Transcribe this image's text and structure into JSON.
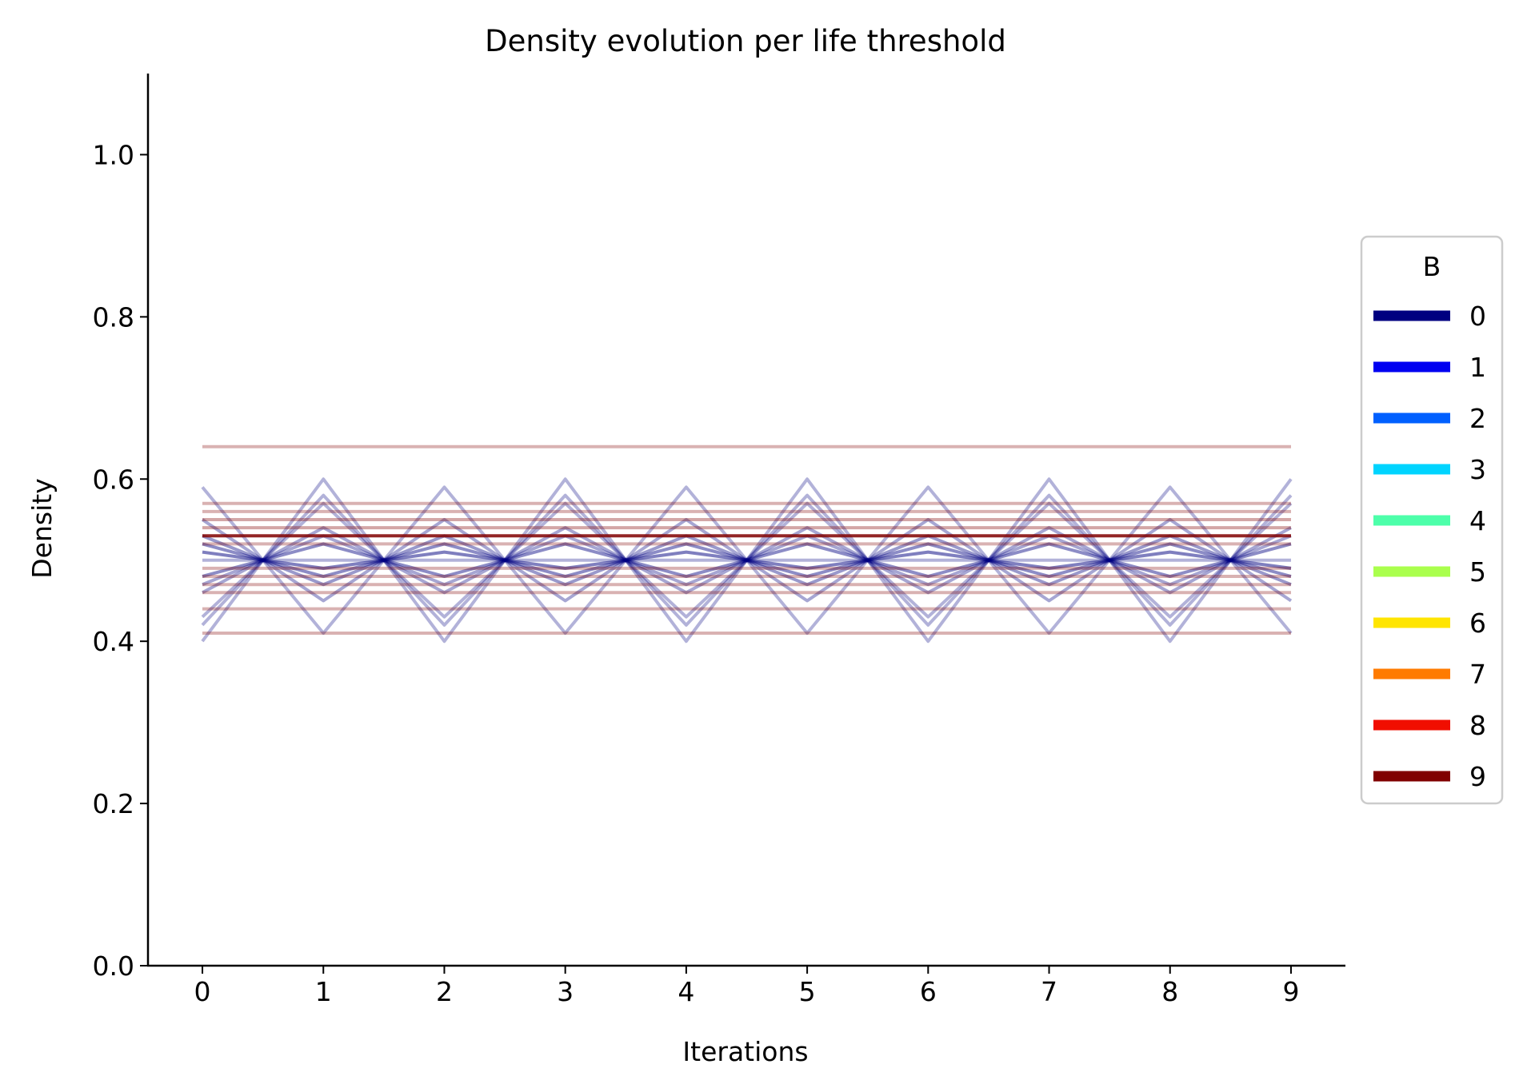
{
  "chart_data": {
    "type": "line",
    "title": "Density evolution per life threshold",
    "xlabel": "Iterations",
    "ylabel": "Density",
    "x": [
      0,
      1,
      2,
      3,
      4,
      5,
      6,
      7,
      8,
      9
    ],
    "xlim": [
      -0.45,
      9.45
    ],
    "ylim": [
      0.0,
      1.1
    ],
    "xticks": [
      "0",
      "1",
      "2",
      "3",
      "4",
      "5",
      "6",
      "7",
      "8",
      "9"
    ],
    "yticks": [
      "0.0",
      "0.2",
      "0.4",
      "0.6",
      "0.8",
      "1.0"
    ],
    "grid": false,
    "legend": {
      "title": "B",
      "placement": "right",
      "entries": [
        {
          "label": "0",
          "color": "#000080"
        },
        {
          "label": "1",
          "color": "#0000f1"
        },
        {
          "label": "2",
          "color": "#0060ff"
        },
        {
          "label": "3",
          "color": "#00d4ff"
        },
        {
          "label": "4",
          "color": "#4dffaa"
        },
        {
          "label": "5",
          "color": "#aaff4d"
        },
        {
          "label": "6",
          "color": "#ffe500"
        },
        {
          "label": "7",
          "color": "#ff7b00"
        },
        {
          "label": "8",
          "color": "#f10e00"
        },
        {
          "label": "9",
          "color": "#800000"
        }
      ]
    },
    "series": [
      {
        "color": "#000080",
        "opacity": 0.3,
        "values": [
          0.4,
          0.6,
          0.4,
          0.6,
          0.4,
          0.6,
          0.4,
          0.6,
          0.4,
          0.6
        ]
      },
      {
        "color": "#000080",
        "opacity": 0.3,
        "values": [
          0.59,
          0.41,
          0.59,
          0.41,
          0.59,
          0.41,
          0.59,
          0.41,
          0.59,
          0.41
        ]
      },
      {
        "color": "#000080",
        "opacity": 0.3,
        "values": [
          0.42,
          0.58,
          0.42,
          0.58,
          0.42,
          0.58,
          0.42,
          0.58,
          0.42,
          0.58
        ]
      },
      {
        "color": "#000080",
        "opacity": 0.3,
        "values": [
          0.43,
          0.57,
          0.43,
          0.57,
          0.43,
          0.57,
          0.43,
          0.57,
          0.43,
          0.57
        ]
      },
      {
        "color": "#000080",
        "opacity": 0.35,
        "values": [
          0.55,
          0.45,
          0.55,
          0.45,
          0.55,
          0.45,
          0.55,
          0.45,
          0.55,
          0.45
        ]
      },
      {
        "color": "#000080",
        "opacity": 0.35,
        "values": [
          0.46,
          0.54,
          0.46,
          0.54,
          0.46,
          0.54,
          0.46,
          0.54,
          0.46,
          0.54
        ]
      },
      {
        "color": "#000080",
        "opacity": 0.4,
        "values": [
          0.53,
          0.47,
          0.53,
          0.47,
          0.53,
          0.47,
          0.53,
          0.47,
          0.53,
          0.47
        ]
      },
      {
        "color": "#000080",
        "opacity": 0.45,
        "values": [
          0.48,
          0.52,
          0.48,
          0.52,
          0.48,
          0.52,
          0.48,
          0.52,
          0.48,
          0.52
        ]
      },
      {
        "color": "#000080",
        "opacity": 0.5,
        "values": [
          0.51,
          0.49,
          0.51,
          0.49,
          0.51,
          0.49,
          0.51,
          0.49,
          0.51,
          0.49
        ]
      },
      {
        "color": "#000080",
        "opacity": 0.45,
        "values": [
          0.52,
          0.48,
          0.52,
          0.48,
          0.52,
          0.48,
          0.52,
          0.48,
          0.52,
          0.48
        ]
      },
      {
        "color": "#000080",
        "opacity": 0.35,
        "values": [
          0.47,
          0.53,
          0.47,
          0.53,
          0.47,
          0.53,
          0.47,
          0.53,
          0.47,
          0.53
        ]
      },
      {
        "color": "#000080",
        "opacity": 0.3,
        "values": [
          0.5,
          0.5,
          0.5,
          0.5,
          0.5,
          0.5,
          0.5,
          0.5,
          0.5,
          0.5
        ]
      },
      {
        "color": "#800000",
        "opacity": 0.3,
        "values": [
          0.64,
          0.64,
          0.64,
          0.64,
          0.64,
          0.64,
          0.64,
          0.64,
          0.64,
          0.64
        ]
      },
      {
        "color": "#800000",
        "opacity": 0.3,
        "values": [
          0.57,
          0.57,
          0.57,
          0.57,
          0.57,
          0.57,
          0.57,
          0.57,
          0.57,
          0.57
        ]
      },
      {
        "color": "#800000",
        "opacity": 0.3,
        "values": [
          0.56,
          0.56,
          0.56,
          0.56,
          0.56,
          0.56,
          0.56,
          0.56,
          0.56,
          0.56
        ]
      },
      {
        "color": "#800000",
        "opacity": 0.35,
        "values": [
          0.55,
          0.55,
          0.55,
          0.55,
          0.55,
          0.55,
          0.55,
          0.55,
          0.55,
          0.55
        ]
      },
      {
        "color": "#800000",
        "opacity": 0.35,
        "values": [
          0.54,
          0.54,
          0.54,
          0.54,
          0.54,
          0.54,
          0.54,
          0.54,
          0.54,
          0.54
        ]
      },
      {
        "color": "#800000",
        "opacity": 0.85,
        "values": [
          0.53,
          0.53,
          0.53,
          0.53,
          0.53,
          0.53,
          0.53,
          0.53,
          0.53,
          0.53
        ]
      },
      {
        "color": "#800000",
        "opacity": 0.3,
        "values": [
          0.52,
          0.52,
          0.52,
          0.52,
          0.52,
          0.52,
          0.52,
          0.52,
          0.52,
          0.52
        ]
      },
      {
        "color": "#800000",
        "opacity": 0.3,
        "values": [
          0.49,
          0.49,
          0.49,
          0.49,
          0.49,
          0.49,
          0.49,
          0.49,
          0.49,
          0.49
        ]
      },
      {
        "color": "#800000",
        "opacity": 0.3,
        "values": [
          0.48,
          0.48,
          0.48,
          0.48,
          0.48,
          0.48,
          0.48,
          0.48,
          0.48,
          0.48
        ]
      },
      {
        "color": "#800000",
        "opacity": 0.3,
        "values": [
          0.47,
          0.47,
          0.47,
          0.47,
          0.47,
          0.47,
          0.47,
          0.47,
          0.47,
          0.47
        ]
      },
      {
        "color": "#800000",
        "opacity": 0.3,
        "values": [
          0.46,
          0.46,
          0.46,
          0.46,
          0.46,
          0.46,
          0.46,
          0.46,
          0.46,
          0.46
        ]
      },
      {
        "color": "#800000",
        "opacity": 0.3,
        "values": [
          0.44,
          0.44,
          0.44,
          0.44,
          0.44,
          0.44,
          0.44,
          0.44,
          0.44,
          0.44
        ]
      },
      {
        "color": "#800000",
        "opacity": 0.3,
        "values": [
          0.41,
          0.41,
          0.41,
          0.41,
          0.41,
          0.41,
          0.41,
          0.41,
          0.41,
          0.41
        ]
      }
    ]
  }
}
